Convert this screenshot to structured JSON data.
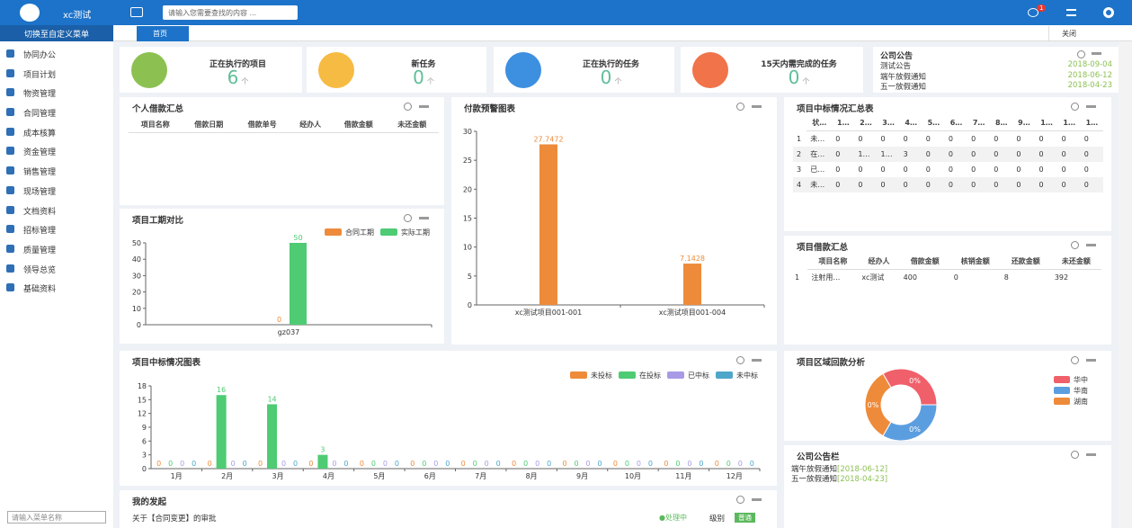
{
  "top_bar": {
    "app_name": "xc测试",
    "search_placeholder": "请输入您需要查找的内容 ...",
    "message_badge": 1
  },
  "sidebar": {
    "switch_label": "切换至自定义菜单",
    "menu": [
      "协同办公",
      "项目计划",
      "物资管理",
      "合同管理",
      "成本核算",
      "资金管理",
      "销售管理",
      "现场管理",
      "文档资料",
      "招标管理",
      "质量管理",
      "领导总览",
      "基础资料"
    ],
    "search_placeholder": "请输入菜单名称"
  },
  "tabs": {
    "home": "首页",
    "close": "关闭"
  },
  "stats": [
    {
      "label": "正在执行的项目",
      "value": 6,
      "unit": "个",
      "icon_color": "#8cc152"
    },
    {
      "label": "新任务",
      "value": 0,
      "unit": "个",
      "icon_color": "#f6bb42"
    },
    {
      "label": "正在执行的任务",
      "value": 0,
      "unit": "个",
      "icon_color": "#3d8fe0"
    },
    {
      "label": "15天内需完成的任务",
      "value": 0,
      "unit": "个",
      "icon_color": "#f0734a"
    }
  ],
  "notice": {
    "title": "公司公告",
    "items": [
      {
        "title": "测试公告",
        "date": "2018-09-04"
      },
      {
        "title": "端午放假通知",
        "date": "2018-06-12"
      },
      {
        "title": "五一放假通知",
        "date": "2018-04-23"
      }
    ]
  },
  "loan_summary": {
    "title": "个人借款汇总",
    "columns": [
      "项目名称",
      "借款日期",
      "借款单号",
      "经办人",
      "借款金额",
      "未还金额"
    ]
  },
  "payment_chart": {
    "type": "bar",
    "title": "付款预警图表",
    "categories": [
      "xc测试项目001-001",
      "xc测试项目001-004"
    ],
    "values": [
      27.7472,
      7.1428
    ],
    "color": "#ee8b3a",
    "ylim": [
      0,
      30
    ],
    "yticks": [
      0,
      5,
      10,
      15,
      20,
      25,
      30
    ]
  },
  "duration_chart": {
    "type": "bar",
    "title": "项目工期对比",
    "categories": [
      "gz037"
    ],
    "series": [
      {
        "name": "合同工期",
        "color": "#ee8b3a",
        "values": [
          0
        ]
      },
      {
        "name": "实际工期",
        "color": "#4ecb73",
        "values": [
          50
        ]
      }
    ],
    "ylim": [
      0,
      50
    ],
    "yticks": [
      0,
      10,
      20,
      30,
      40,
      50
    ]
  },
  "bid_table": {
    "title": "项目中标情况汇总表",
    "columns": [
      "状…",
      "1…",
      "2…",
      "3…",
      "4…",
      "5…",
      "6…",
      "7…",
      "8…",
      "9…",
      "1…",
      "1…",
      "1…"
    ],
    "rows": [
      [
        1,
        "未…",
        0,
        0,
        0,
        0,
        0,
        0,
        0,
        0,
        0,
        0,
        0,
        0
      ],
      [
        2,
        "在…",
        0,
        "1…",
        "1…",
        3,
        0,
        0,
        0,
        0,
        0,
        0,
        0,
        0
      ],
      [
        3,
        "已…",
        0,
        0,
        0,
        0,
        0,
        0,
        0,
        0,
        0,
        0,
        0,
        0
      ],
      [
        4,
        "未…",
        0,
        0,
        0,
        0,
        0,
        0,
        0,
        0,
        0,
        0,
        0,
        0
      ]
    ]
  },
  "loan_table": {
    "title": "项目借款汇总",
    "columns": [
      "项目名称",
      "经办人",
      "借款金额",
      "核销金额",
      "还款金额",
      "未还金额"
    ],
    "rows": [
      [
        1,
        "注射用…",
        "xc测试",
        400,
        0,
        8,
        392
      ]
    ]
  },
  "bid_chart": {
    "type": "bar",
    "title": "项目中标情况图表",
    "categories": [
      "1月",
      "2月",
      "3月",
      "4月",
      "5月",
      "6月",
      "7月",
      "8月",
      "9月",
      "10月",
      "11月",
      "12月"
    ],
    "series": [
      {
        "name": "未投标",
        "color": "#ee8b3a",
        "values": [
          0,
          0,
          0,
          0,
          0,
          0,
          0,
          0,
          0,
          0,
          0,
          0
        ]
      },
      {
        "name": "在投标",
        "color": "#4ecb73",
        "values": [
          0,
          16,
          14,
          3,
          0,
          0,
          0,
          0,
          0,
          0,
          0,
          0
        ]
      },
      {
        "name": "已中标",
        "color": "#a99ae6",
        "values": [
          0,
          0,
          0,
          0,
          0,
          0,
          0,
          0,
          0,
          0,
          0,
          0
        ]
      },
      {
        "name": "未中标",
        "color": "#4ea6c9",
        "values": [
          0,
          0,
          0,
          0,
          0,
          0,
          0,
          0,
          0,
          0,
          0,
          0
        ]
      }
    ],
    "ylim": [
      0,
      18
    ],
    "yticks": [
      0,
      3,
      6,
      9,
      12,
      15,
      18
    ]
  },
  "region_chart": {
    "type": "pie",
    "title": "项目区域回款分析",
    "categories": [
      "华中",
      "华南",
      "湖南"
    ],
    "values": [
      0,
      0,
      0
    ],
    "value_labels": [
      "0%",
      "0%",
      "0%"
    ],
    "colors": [
      "#f0606a",
      "#5b9ee0",
      "#ee8b3a"
    ]
  },
  "notice_board": {
    "title": "公司公告栏",
    "items": [
      {
        "title": "端午放假通知",
        "date": "[2018-06-12]"
      },
      {
        "title": "五一放假通知",
        "date": "[2018-04-23]"
      }
    ]
  },
  "my_requests": {
    "title": "我的发起",
    "items": [
      {
        "title": "关于【合同变更】的审批",
        "status": "●处理中",
        "level_label": "级别",
        "level": "普通"
      }
    ]
  }
}
